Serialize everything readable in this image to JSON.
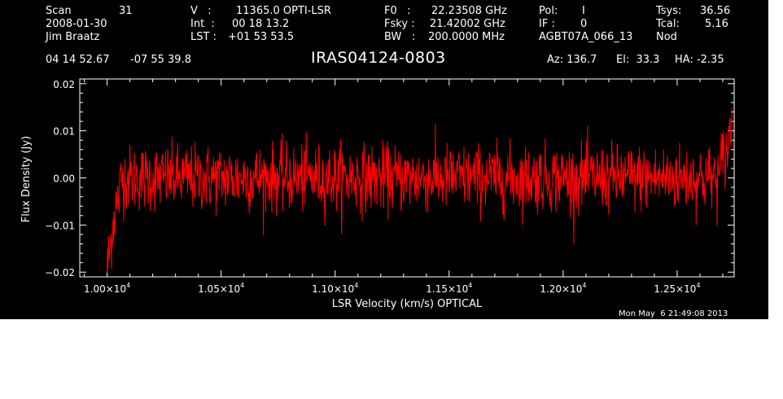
{
  "header": {
    "scan_label": "Scan",
    "scan_value": "31",
    "date": "2008-01-30",
    "observer": "Jim Braatz",
    "v_label": "V   :",
    "v_value": "11365.0 OPTI-LSR",
    "int_label": "Int  :",
    "int_value": "00 18 13.2",
    "lst_label": "LST :",
    "lst_value": "+01 53 53.5",
    "f0_label": "F0   :",
    "f0_value": "22.23508 GHz",
    "fsky_label": "Fsky :",
    "fsky_value": "21.42002 GHz",
    "bw_label": "BW   :",
    "bw_value": "200.0000 MHz",
    "pol_label": "Pol:",
    "pol_value": "I",
    "if_label": "IF :",
    "if_value": "0",
    "project": "AGBT07A_066_13",
    "tsys_label": "Tsys:",
    "tsys_value": "36.56",
    "tcal_label": "Tcal:",
    "tcal_value": "5.16",
    "proc": "Nod",
    "ra": "04 14 52.67",
    "dec": "-07 55 39.8",
    "source": "IRAS04124-0803",
    "az": "Az: 136.7",
    "el": "El:  33.3",
    "ha": "HA: -2.35"
  },
  "timestamp": "Mon May  6 21:49:08 2013",
  "chart_data": {
    "type": "line",
    "xlabel": "LSR Velocity (km/s) OPTICAL",
    "ylabel": "Flux Density (Jy)",
    "xlim": [
      9880,
      12750
    ],
    "ylim": [
      -0.021,
      0.021
    ],
    "xticks": [
      10000,
      10500,
      11000,
      11500,
      12000,
      12500
    ],
    "xtick_labels": [
      "1.00×10",
      "1.05×10",
      "1.10×10",
      "1.15×10",
      "1.20×10",
      "1.25×10"
    ],
    "xtick_exponent": "4",
    "yticks": [
      -0.02,
      -0.01,
      0.0,
      0.01,
      0.02
    ],
    "ytick_labels": [
      "−0.02",
      "−0.01",
      "0.00",
      "0.01",
      "0.02"
    ],
    "grid": false,
    "series": [
      {
        "color": "#ff0000",
        "x_range": [
          10000,
          12740
        ],
        "n_points": 1400,
        "mean": 0.0,
        "rms": 0.0035,
        "edge_low": [
          [
            10000,
            -0.019
          ],
          [
            10010,
            -0.016
          ],
          [
            10030,
            -0.008
          ],
          [
            10060,
            -0.002
          ]
        ],
        "edge_high": [
          [
            12690,
            0.003
          ],
          [
            12720,
            0.006
          ],
          [
            12740,
            0.012
          ]
        ]
      }
    ]
  }
}
